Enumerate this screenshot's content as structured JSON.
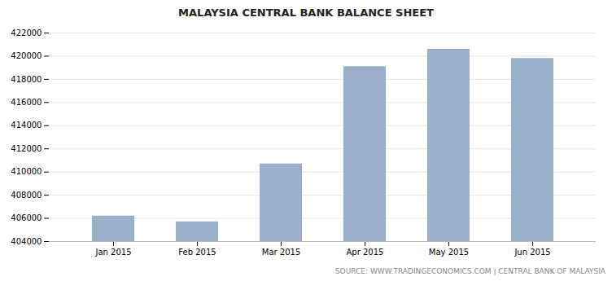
{
  "chart_data": {
    "type": "bar",
    "title": "MALAYSIA CENTRAL BANK BALANCE SHEET",
    "categories": [
      "Jan 2015",
      "Feb 2015",
      "Mar 2015",
      "Apr 2015",
      "May 2015",
      "Jun 2015"
    ],
    "values": [
      406200,
      405700,
      410700,
      419100,
      420600,
      419800
    ],
    "color": "#9ab0c8",
    "ylim": [
      404000,
      422000
    ],
    "yticks": [
      404000,
      406000,
      408000,
      410000,
      412000,
      414000,
      416000,
      418000,
      420000,
      422000
    ],
    "grid": true,
    "annotations": [
      "SOURCE: WWW.TRADINGECONOMICS.COM | CENTRAL BANK OF MALAYSIA"
    ]
  }
}
